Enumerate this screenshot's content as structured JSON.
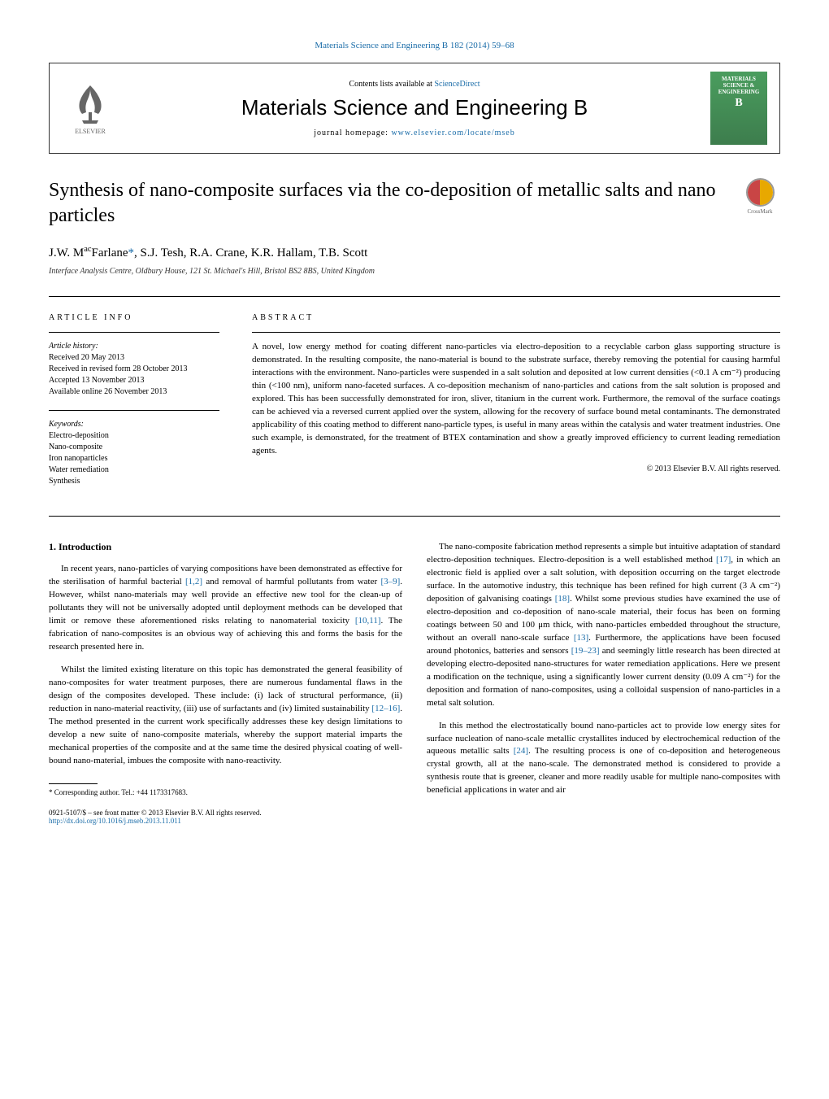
{
  "header": {
    "topLink": "Materials Science and Engineering B 182 (2014) 59–68",
    "contentsText": "Contents lists available at ",
    "contentsLink": "ScienceDirect",
    "journalName": "Materials Science and Engineering B",
    "homepageLabel": "journal homepage: ",
    "homepageUrl": "www.elsevier.com/locate/mseb",
    "elsevierLabel": "ELSEVIER",
    "coverTitle": "MATERIALS SCIENCE & ENGINEERING",
    "coverLetter": "B",
    "crossmarkLabel": "CrossMark"
  },
  "article": {
    "title": "Synthesis of nano-composite surfaces via the co-deposition of metallic salts and nano particles",
    "authors": "J.W. MacFarlane*, S.J. Tesh, R.A. Crane, K.R. Hallam, T.B. Scott",
    "affiliation": "Interface Analysis Centre, Oldbury House, 121 St. Michael's Hill, Bristol BS2 8BS, United Kingdom"
  },
  "meta": {
    "articleInfoLabel": "ARTICLE INFO",
    "abstractLabel": "ABSTRACT",
    "historyHeading": "Article history:",
    "received": "Received 20 May 2013",
    "revisedForm": "Received in revised form 28 October 2013",
    "accepted": "Accepted 13 November 2013",
    "online": "Available online 26 November 2013",
    "keywordsHeading": "Keywords:",
    "keywords": [
      "Electro-deposition",
      "Nano-composite",
      "Iron nanoparticles",
      "Water remediation",
      "Synthesis"
    ]
  },
  "abstract": {
    "text": "A novel, low energy method for coating different nano-particles via electro-deposition to a recyclable carbon glass supporting structure is demonstrated. In the resulting composite, the nano-material is bound to the substrate surface, thereby removing the potential for causing harmful interactions with the environment. Nano-particles were suspended in a salt solution and deposited at low current densities (<0.1 A cm⁻²) producing thin (<100 nm), uniform nano-faceted surfaces. A co-deposition mechanism of nano-particles and cations from the salt solution is proposed and explored. This has been successfully demonstrated for iron, sliver, titanium in the current work. Furthermore, the removal of the surface coatings can be achieved via a reversed current applied over the system, allowing for the recovery of surface bound metal contaminants. The demonstrated applicability of this coating method to different nano-particle types, is useful in many areas within the catalysis and water treatment industries. One such example, is demonstrated, for the treatment of BTEX contamination and show a greatly improved efficiency to current leading remediation agents.",
    "copyright": "© 2013 Elsevier B.V. All rights reserved."
  },
  "body": {
    "introHeading": "1. Introduction",
    "col1": [
      {
        "text": "In recent years, nano-particles of varying compositions have been demonstrated as effective for the sterilisation of harmful bacterial ",
        "ref1": "[1,2]",
        "text2": " and removal of harmful pollutants from water ",
        "ref2": "[3–9]",
        "text3": ". However, whilst nano-materials may well provide an effective new tool for the clean-up of pollutants they will not be universally adopted until deployment methods can be developed that limit or remove these aforementioned risks relating to nanomaterial toxicity ",
        "ref3": "[10,11]",
        "text4": ". The fabrication of nano-composites is an obvious way of achieving this and forms the basis for the research presented here in."
      },
      {
        "text": "Whilst the limited existing literature on this topic has demonstrated the general feasibility of nano-composites for water treatment purposes, there are numerous fundamental flaws in the design of the composites developed. These include: (i) lack of structural performance, (ii) reduction in nano-material reactivity, (iii) use of surfactants and (iv) limited sustainability ",
        "ref1": "[12–16]",
        "text2": ". The method presented in the current work specifically addresses these key design limitations to develop a new suite of nano-composite materials, whereby the support material imparts the mechanical properties of the composite and at the same time the desired physical coating of well-bound nano-material, imbues the composite with nano-reactivity."
      }
    ],
    "col2": [
      {
        "text": "The nano-composite fabrication method represents a simple but intuitive adaptation of standard electro-deposition techniques. Electro-deposition is a well established method ",
        "ref1": "[17]",
        "text2": ", in which an electronic field is applied over a salt solution, with deposition occurring on the target electrode surface. In the automotive industry, this technique has been refined for high current (3 A cm⁻²) deposition of galvanising coatings ",
        "ref2": "[18]",
        "text3": ". Whilst some previous studies have examined the use of electro-deposition and co-deposition of nano-scale material, their focus has been on forming coatings between 50 and 100 μm thick, with nano-particles embedded throughout the structure, without an overall nano-scale surface ",
        "ref3": "[13]",
        "text4": ". Furthermore, the applications have been focused around photonics, batteries and sensors ",
        "ref4": "[19–23]",
        "text5": " and seemingly little research has been directed at developing electro-deposited nano-structures for water remediation applications. Here we present a modification on the technique, using a significantly lower current density (0.09 A cm⁻²) for the deposition and formation of nano-composites, using a colloidal suspension of nano-particles in a metal salt solution."
      },
      {
        "text": "In this method the electrostatically bound nano-particles act to provide low energy sites for surface nucleation of nano-scale metallic crystallites induced by electrochemical reduction of the aqueous metallic salts ",
        "ref1": "[24]",
        "text2": ". The resulting process is one of co-deposition and heterogeneous crystal growth, all at the nano-scale. The demonstrated method is considered to provide a synthesis route that is greener, cleaner and more readily usable for multiple nano-composites with beneficial applications in water and air"
      }
    ]
  },
  "footer": {
    "corresponding": "* Corresponding author. Tel.: +44 1173317683.",
    "issn": "0921-5107/$ – see front matter © 2013 Elsevier B.V. All rights reserved.",
    "doi": "http://dx.doi.org/10.1016/j.mseb.2013.11.011"
  },
  "colors": {
    "link": "#1a6ca8",
    "coverGreen1": "#4a9d5e",
    "coverGreen2": "#3d7d4d",
    "crossmarkRed": "#c94545",
    "crossmarkYellow": "#e8a800"
  }
}
